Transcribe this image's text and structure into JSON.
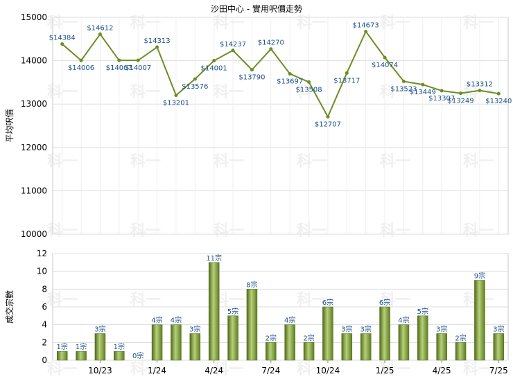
{
  "chart_data": [
    {
      "type": "line",
      "title": "沙田中心 - 實用呎價走勢",
      "ylabel": "平均呎價",
      "ylim": [
        10000,
        15000
      ],
      "yticks": [
        "10000",
        "11000",
        "12000",
        "13000",
        "14000",
        "15000"
      ],
      "color": "#6b8e23",
      "grid": true,
      "series": [
        {
          "values": [
            14384,
            14006,
            14612,
            14007,
            14007,
            14313,
            13201,
            13576,
            14001,
            14237,
            13790,
            14270,
            13697,
            13508,
            12707,
            13717,
            14673,
            14074,
            13523,
            13449,
            13307,
            13249,
            13312,
            13240
          ],
          "labels": [
            "$14384",
            "$14006",
            "$14612",
            "$14007",
            "$14007",
            "$14313",
            "$13201",
            "$13576",
            "$14001",
            "$14237",
            "$13790",
            "$14270",
            "$13697",
            "$13508",
            "$12707",
            "$13717",
            "$14673",
            "$14074",
            "$13523",
            "$13449",
            "$13307",
            "$13249",
            "$13312",
            "$13240"
          ]
        }
      ]
    },
    {
      "type": "bar",
      "ylabel": "成交宗數",
      "ylim": [
        0,
        12
      ],
      "yticks": [
        "0",
        "2",
        "4",
        "6",
        "8",
        "10",
        "12"
      ],
      "color": "#6b8e23",
      "grid": true,
      "xticks": [
        "10/23",
        "1/24",
        "4/24",
        "7/24",
        "10/24",
        "1/25",
        "4/25",
        "7/25"
      ],
      "xtick_index": [
        2,
        5,
        8,
        11,
        14,
        17,
        20,
        23
      ],
      "series": [
        {
          "values": [
            1,
            1,
            3,
            1,
            0,
            4,
            4,
            3,
            11,
            5,
            8,
            2,
            4,
            2,
            6,
            3,
            3,
            6,
            4,
            5,
            3,
            2,
            9,
            3
          ],
          "labels": [
            "1宗",
            "1宗",
            "3宗",
            "1宗",
            "0宗",
            "4宗",
            "4宗",
            "3宗",
            "11宗",
            "5宗",
            "8宗",
            "2宗",
            "4宗",
            "2宗",
            "6宗",
            "3宗",
            "3宗",
            "6宗",
            "4宗",
            "5宗",
            "3宗",
            "2宗",
            "9宗",
            "3宗"
          ]
        }
      ]
    }
  ],
  "watermark": "科一"
}
